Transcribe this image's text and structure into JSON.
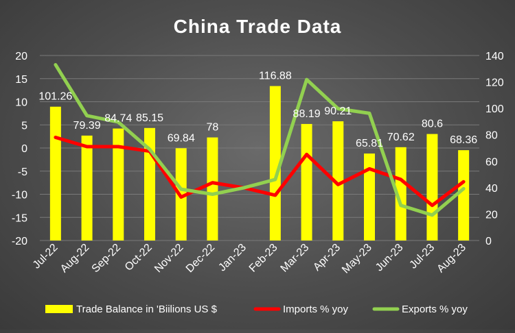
{
  "chart_data": {
    "type": "bar",
    "title": "China Trade Data",
    "categories": [
      "Jul-22",
      "Aug-22",
      "Sep-22",
      "Oct-22",
      "Nov-22",
      "Dec-22",
      "Jan-23",
      "Feb-23",
      "Mar-23",
      "Apr-23",
      "May-23",
      "Jun-23",
      "Jul-23",
      "Aug-23"
    ],
    "series": [
      {
        "name": "Trade Balance in 'Biilions US $",
        "type": "bar",
        "axis": "right",
        "color": "#ffff00",
        "values": [
          101.26,
          79.39,
          84.74,
          85.15,
          69.84,
          78,
          null,
          116.88,
          88.19,
          90.21,
          65.81,
          70.62,
          80.6,
          68.36
        ],
        "labels": [
          "101.26",
          "79.39",
          "84.74",
          "85.15",
          "69.84",
          "78",
          "",
          "116.88",
          "88.19",
          "90.21",
          "65.81",
          "70.62",
          "80.6",
          "68.36"
        ]
      },
      {
        "name": "Imports % yoy",
        "type": "line",
        "axis": "left",
        "color": "#ff0000",
        "values": [
          2.3,
          0.3,
          0.3,
          -0.7,
          -10.6,
          -7.5,
          -8.6,
          -10.2,
          -1.4,
          -7.9,
          -4.5,
          -6.8,
          -12.4,
          -7.3
        ]
      },
      {
        "name": "Exports % yoy",
        "type": "line",
        "axis": "left",
        "color": "#92d050",
        "values": [
          18.0,
          7.0,
          5.6,
          -0.3,
          -8.9,
          -10.0,
          -8.6,
          -6.8,
          14.8,
          8.5,
          7.5,
          -12.4,
          -14.5,
          -8.8
        ]
      }
    ],
    "y_left": {
      "ylim": [
        -20,
        20
      ],
      "ticks": [
        "20",
        "15",
        "10",
        "5",
        "0",
        "-5",
        "-10",
        "-15",
        "-20"
      ]
    },
    "y_right": {
      "ylim": [
        0,
        140
      ],
      "ticks": [
        "140",
        "120",
        "100",
        "80",
        "60",
        "40",
        "20",
        "0"
      ]
    },
    "legend_position": "bottom",
    "grid": true
  }
}
